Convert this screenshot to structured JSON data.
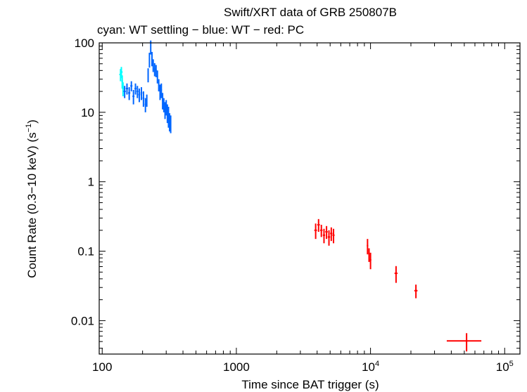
{
  "chart_data": {
    "type": "scatter",
    "title": "Swift/XRT data of GRB 250807B",
    "subtitle": "cyan: WT settling − blue: WT − red: PC",
    "xlabel": "Time since BAT trigger (s)",
    "ylabel_main": "Count Rate (0.3−10 keV) (s",
    "ylabel_exp": "−1",
    "ylabel_close": ")",
    "xscale": "log",
    "yscale": "log",
    "xlim": [
      95,
      130000
    ],
    "ylim": [
      0.0033,
      100
    ],
    "xticks": [
      {
        "value": 100,
        "label": "100"
      },
      {
        "value": 1000,
        "label": "1000"
      },
      {
        "value": 10000,
        "label": "10",
        "exp": "4"
      },
      {
        "value": 100000,
        "label": "10",
        "exp": "5"
      }
    ],
    "yticks": [
      {
        "value": 0.01,
        "label": "0.01"
      },
      {
        "value": 0.1,
        "label": "0.1"
      },
      {
        "value": 1,
        "label": "1"
      },
      {
        "value": 10,
        "label": "10"
      },
      {
        "value": 100,
        "label": "100"
      }
    ],
    "series": [
      {
        "color": "#00ffff",
        "points": [
          [
            137,
            35,
            7,
            3
          ],
          [
            139,
            38,
            7,
            3
          ],
          [
            141,
            28,
            6,
            2
          ],
          [
            143,
            22,
            5,
            2
          ]
        ]
      },
      {
        "color": "#0066ff",
        "points": [
          [
            147,
            20,
            4,
            3
          ],
          [
            153,
            22,
            4,
            3
          ],
          [
            159,
            19,
            4,
            3
          ],
          [
            165,
            24,
            4,
            3
          ],
          [
            171,
            17,
            4,
            3
          ],
          [
            177,
            22,
            4,
            3
          ],
          [
            183,
            20,
            4,
            3
          ],
          [
            189,
            18,
            4,
            3
          ],
          [
            196,
            19,
            4,
            3
          ],
          [
            203,
            16,
            4,
            3
          ],
          [
            210,
            13,
            3,
            3
          ],
          [
            215,
            15,
            3,
            2
          ],
          [
            220,
            35,
            8,
            2
          ],
          [
            225,
            58,
            14,
            2
          ],
          [
            230,
            88,
            20,
            2
          ],
          [
            235,
            60,
            14,
            2
          ],
          [
            240,
            48,
            10,
            2
          ],
          [
            246,
            42,
            9,
            3
          ],
          [
            252,
            40,
            8,
            3
          ],
          [
            258,
            33,
            7,
            3
          ],
          [
            264,
            25,
            5,
            3
          ],
          [
            270,
            20,
            5,
            3
          ],
          [
            276,
            21,
            5,
            3
          ],
          [
            282,
            15,
            4,
            3
          ],
          [
            288,
            13,
            3,
            3
          ],
          [
            294,
            11,
            3,
            3
          ],
          [
            300,
            12,
            3,
            3
          ],
          [
            306,
            10,
            3,
            3
          ],
          [
            312,
            9,
            3,
            3
          ],
          [
            318,
            7.5,
            2.2,
            3
          ],
          [
            324,
            7,
            2,
            3
          ]
        ]
      },
      {
        "color": "#ff0000",
        "points": [
          [
            3900,
            0.2,
            0.05,
            90
          ],
          [
            4100,
            0.24,
            0.05,
            90
          ],
          [
            4300,
            0.2,
            0.04,
            90
          ],
          [
            4500,
            0.17,
            0.04,
            90
          ],
          [
            4700,
            0.19,
            0.04,
            100
          ],
          [
            4900,
            0.16,
            0.04,
            100
          ],
          [
            5100,
            0.18,
            0.04,
            100
          ],
          [
            5300,
            0.17,
            0.04,
            100
          ],
          [
            9500,
            0.12,
            0.03,
            120
          ],
          [
            9750,
            0.09,
            0.02,
            120
          ],
          [
            10000,
            0.075,
            0.02,
            140
          ],
          [
            15500,
            0.048,
            0.013,
            400
          ],
          [
            21800,
            0.027,
            0.006,
            600
          ],
          [
            52000,
            0.0051,
            0.0015,
            15000
          ]
        ]
      }
    ]
  }
}
